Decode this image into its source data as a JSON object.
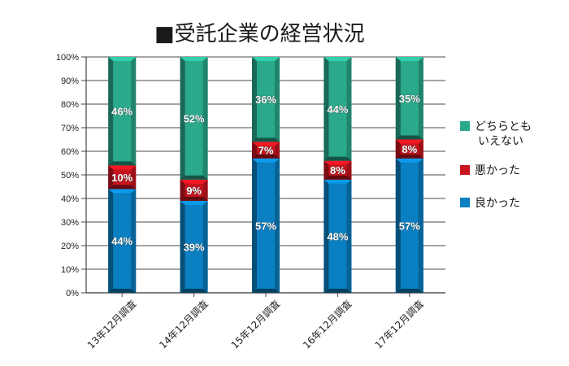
{
  "chart_data": {
    "type": "bar",
    "stacked": true,
    "title": "■受託企業の経営状況",
    "categories": [
      "13年12月調査",
      "14年12月調査",
      "15年12月調査",
      "16年12月調査",
      "17年12月調査"
    ],
    "series": [
      {
        "name": "良かった",
        "values": [
          44,
          39,
          57,
          48,
          57
        ],
        "color": "#0a7fc1"
      },
      {
        "name": "悪かった",
        "values": [
          10,
          9,
          7,
          8,
          8
        ],
        "color": "#c8141e"
      },
      {
        "name": "どちらとも いえない",
        "values": [
          46,
          52,
          36,
          44,
          35
        ],
        "color": "#2aa98b"
      }
    ],
    "legend_order": [
      "どちらとも いえない",
      "悪かった",
      "良かった"
    ],
    "value_suffix": "%",
    "ylim": [
      0,
      100
    ],
    "yticks": [
      "0%",
      "10%",
      "20%",
      "30%",
      "40%",
      "50%",
      "60%",
      "70%",
      "80%",
      "90%",
      "100%"
    ],
    "grid": true,
    "legend_position": "right",
    "xlabel": "",
    "ylabel": ""
  }
}
